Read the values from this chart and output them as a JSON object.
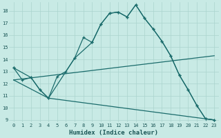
{
  "xlabel": "Humidex (Indice chaleur)",
  "bg_color": "#c8eae5",
  "grid_color": "#aad4ce",
  "line_color": "#1a6b6b",
  "xlim": [
    -0.5,
    23.5
  ],
  "ylim": [
    8.8,
    18.7
  ],
  "yticks": [
    9,
    10,
    11,
    12,
    13,
    14,
    15,
    16,
    17,
    18
  ],
  "xticks": [
    0,
    1,
    2,
    3,
    4,
    5,
    6,
    7,
    8,
    9,
    10,
    11,
    12,
    13,
    14,
    15,
    16,
    17,
    18,
    19,
    20,
    21,
    22,
    23
  ],
  "curve1_x": [
    0,
    1,
    2,
    3,
    4,
    5,
    6,
    7,
    8,
    9,
    10,
    11,
    12,
    13,
    14,
    15,
    16,
    17,
    18,
    19,
    20,
    21,
    22,
    23
  ],
  "curve1_y": [
    13.3,
    12.3,
    12.5,
    11.5,
    10.8,
    12.6,
    13.0,
    14.1,
    15.8,
    15.4,
    16.9,
    17.8,
    17.9,
    17.5,
    18.5,
    17.4,
    16.5,
    15.5,
    14.3,
    12.7,
    11.5,
    10.2,
    9.1,
    9.0
  ],
  "curve2_x": [
    0,
    2,
    3,
    4,
    7,
    9,
    10,
    11,
    12,
    13,
    14,
    15,
    16,
    17,
    18,
    19,
    20,
    21,
    22,
    23
  ],
  "curve2_y": [
    13.3,
    12.5,
    11.5,
    10.8,
    14.1,
    15.4,
    16.9,
    17.8,
    17.9,
    17.5,
    18.5,
    17.4,
    16.5,
    15.5,
    14.3,
    12.7,
    11.5,
    10.2,
    9.1,
    9.0
  ],
  "line3_x": [
    0,
    23
  ],
  "line3_y": [
    12.3,
    14.3
  ],
  "line4_x": [
    0,
    4,
    23
  ],
  "line4_y": [
    12.3,
    10.8,
    9.0
  ]
}
